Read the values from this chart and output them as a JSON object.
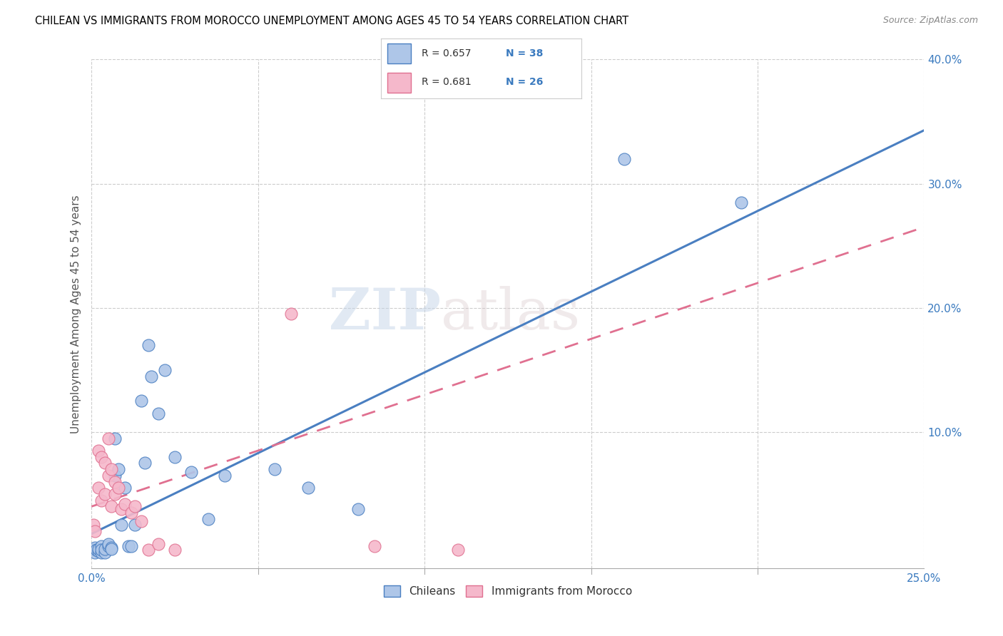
{
  "title": "CHILEAN VS IMMIGRANTS FROM MOROCCO UNEMPLOYMENT AMONG AGES 45 TO 54 YEARS CORRELATION CHART",
  "source": "Source: ZipAtlas.com",
  "ylabel": "Unemployment Among Ages 45 to 54 years",
  "xlim": [
    0.0,
    0.25
  ],
  "ylim": [
    -0.01,
    0.4
  ],
  "xticks_major": [
    0.0,
    0.25
  ],
  "xticks_minor": [
    0.05,
    0.1,
    0.15,
    0.2
  ],
  "yticks_major": [
    0.1,
    0.2,
    0.3,
    0.4
  ],
  "yticks_minor": [],
  "xticklabels_major": [
    "0.0%",
    "25.0%"
  ],
  "yticklabels_major": [
    "10.0%",
    "20.0%",
    "30.0%",
    "40.0%"
  ],
  "legend_r1": "R = 0.657",
  "legend_n1": "N = 38",
  "legend_r2": "R = 0.681",
  "legend_n2": "N = 26",
  "chilean_color": "#aec6e8",
  "morocco_color": "#f5b8cb",
  "line_chilean_color": "#4a7fc1",
  "line_morocco_color": "#e07090",
  "watermark_zip": "ZIP",
  "watermark_atlas": "atlas",
  "chileans_x": [
    0.0005,
    0.001,
    0.001,
    0.0015,
    0.002,
    0.002,
    0.003,
    0.003,
    0.003,
    0.004,
    0.004,
    0.005,
    0.005,
    0.006,
    0.006,
    0.007,
    0.007,
    0.008,
    0.009,
    0.01,
    0.011,
    0.012,
    0.013,
    0.015,
    0.016,
    0.017,
    0.018,
    0.02,
    0.022,
    0.025,
    0.03,
    0.035,
    0.04,
    0.055,
    0.065,
    0.08,
    0.16,
    0.195
  ],
  "chileans_y": [
    0.005,
    0.003,
    0.007,
    0.005,
    0.004,
    0.006,
    0.003,
    0.008,
    0.005,
    0.003,
    0.006,
    0.008,
    0.01,
    0.007,
    0.006,
    0.095,
    0.065,
    0.07,
    0.025,
    0.055,
    0.008,
    0.008,
    0.025,
    0.125,
    0.075,
    0.17,
    0.145,
    0.115,
    0.15,
    0.08,
    0.068,
    0.03,
    0.065,
    0.07,
    0.055,
    0.038,
    0.32,
    0.285
  ],
  "morocco_x": [
    0.0005,
    0.001,
    0.002,
    0.002,
    0.003,
    0.003,
    0.004,
    0.004,
    0.005,
    0.005,
    0.006,
    0.006,
    0.007,
    0.007,
    0.008,
    0.009,
    0.01,
    0.012,
    0.013,
    0.015,
    0.017,
    0.02,
    0.025,
    0.06,
    0.085,
    0.11
  ],
  "morocco_y": [
    0.025,
    0.02,
    0.085,
    0.055,
    0.08,
    0.045,
    0.075,
    0.05,
    0.095,
    0.065,
    0.07,
    0.04,
    0.05,
    0.06,
    0.055,
    0.038,
    0.042,
    0.035,
    0.04,
    0.028,
    0.005,
    0.01,
    0.005,
    0.195,
    0.008,
    0.005
  ],
  "line_chilean_slope": 1.3,
  "line_chilean_intercept": 0.018,
  "line_morocco_slope": 0.9,
  "line_morocco_intercept": 0.04
}
